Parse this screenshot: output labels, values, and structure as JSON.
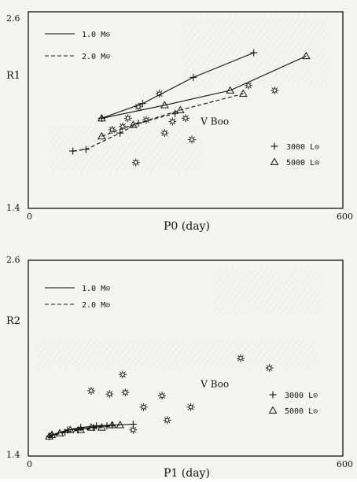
{
  "chart_data": [
    {
      "type": "scatter",
      "xlabel": "P0 (day)",
      "ylabel": "R1",
      "xlim": [
        0,
        600
      ],
      "ylim": [
        1.4,
        2.6
      ],
      "x_ticks": [
        "0",
        "600"
      ],
      "y_ticks": [
        "1.4",
        "2.6"
      ],
      "legend_lines": [
        {
          "label": "1.0 M⊙",
          "style": "solid"
        },
        {
          "label": "2.0 M⊙",
          "style": "dashed"
        }
      ],
      "legend_markers": [
        {
          "label": "3000 L⊙",
          "marker": "plus"
        },
        {
          "label": "5000 L⊙",
          "marker": "triangle"
        }
      ],
      "annotation": {
        "label": "V Boo",
        "x": 320,
        "y": 1.93
      },
      "series": [
        {
          "marker": "plus",
          "line": "solid",
          "values": [
            [
              140,
              1.95
            ],
            [
              218,
              2.04
            ],
            [
              315,
              2.2
            ],
            [
              430,
              2.35
            ]
          ]
        },
        {
          "marker": "plus",
          "line": "dashed",
          "values": [
            [
              85,
              1.75
            ],
            [
              110,
              1.76
            ],
            [
              175,
              1.86
            ],
            [
              210,
              1.92
            ],
            [
              280,
              1.98
            ]
          ]
        },
        {
          "marker": "triangle",
          "line": "solid",
          "values": [
            [
              140,
              1.95
            ],
            [
              260,
              2.03
            ],
            [
              385,
              2.12
            ],
            [
              530,
              2.33
            ]
          ]
        },
        {
          "marker": "triangle",
          "line": "dashed",
          "values": [
            [
              140,
              1.84
            ],
            [
              200,
              1.91
            ],
            [
              290,
              2.0
            ],
            [
              410,
              2.1
            ]
          ]
        },
        {
          "marker": "star",
          "line": "none",
          "values": [
            [
              160,
              1.88
            ],
            [
              180,
              1.9
            ],
            [
              190,
              1.95
            ],
            [
              210,
              2.02
            ],
            [
              250,
              2.1
            ],
            [
              225,
              1.94
            ],
            [
              275,
              1.93
            ],
            [
              260,
              1.86
            ],
            [
              300,
              1.95
            ],
            [
              312,
              1.82
            ],
            [
              420,
              2.15
            ],
            [
              470,
              2.12
            ],
            [
              205,
              1.68
            ]
          ]
        }
      ]
    },
    {
      "type": "scatter",
      "xlabel": "P1 (day)",
      "ylabel": "R2",
      "xlim": [
        0,
        600
      ],
      "ylim": [
        1.4,
        2.6
      ],
      "x_ticks": [
        "0",
        "600"
      ],
      "y_ticks": [
        "1.4",
        "2.6"
      ],
      "legend_lines": [
        {
          "label": "1.0 M⊙",
          "style": "solid"
        },
        {
          "label": "2.0 M⊙",
          "style": "dashed"
        }
      ],
      "legend_markers": [
        {
          "label": "3000 L⊙",
          "marker": "plus"
        },
        {
          "label": "5000 L⊙",
          "marker": "triangle"
        }
      ],
      "annotation": {
        "label": "V Boo",
        "x": 320,
        "y": 1.84
      },
      "series": [
        {
          "marker": "plus",
          "line": "solid",
          "values": [
            [
              45,
              1.53
            ],
            [
              75,
              1.56
            ],
            [
              100,
              1.575
            ],
            [
              130,
              1.585
            ],
            [
              160,
              1.59
            ],
            [
              200,
              1.595
            ]
          ]
        },
        {
          "marker": "plus",
          "line": "dashed",
          "values": [
            [
              40,
              1.52
            ],
            [
              70,
              1.545
            ],
            [
              95,
              1.56
            ],
            [
              125,
              1.575
            ],
            [
              150,
              1.585
            ]
          ]
        },
        {
          "marker": "triangle",
          "line": "solid",
          "values": [
            [
              45,
              1.53
            ],
            [
              80,
              1.56
            ],
            [
              120,
              1.575
            ],
            [
              160,
              1.59
            ]
          ]
        },
        {
          "marker": "triangle",
          "line": "dashed",
          "values": [
            [
              40,
              1.52
            ],
            [
              60,
              1.54
            ],
            [
              100,
              1.56
            ],
            [
              140,
              1.575
            ],
            [
              175,
              1.59
            ]
          ]
        },
        {
          "marker": "star",
          "line": "none",
          "values": [
            [
              120,
              1.8
            ],
            [
              155,
              1.78
            ],
            [
              185,
              1.79
            ],
            [
              180,
              1.9
            ],
            [
              255,
              1.77
            ],
            [
              220,
              1.7
            ],
            [
              265,
              1.62
            ],
            [
              200,
              1.56
            ],
            [
              310,
              1.7
            ],
            [
              405,
              2.0
            ],
            [
              460,
              1.94
            ]
          ]
        }
      ]
    }
  ]
}
